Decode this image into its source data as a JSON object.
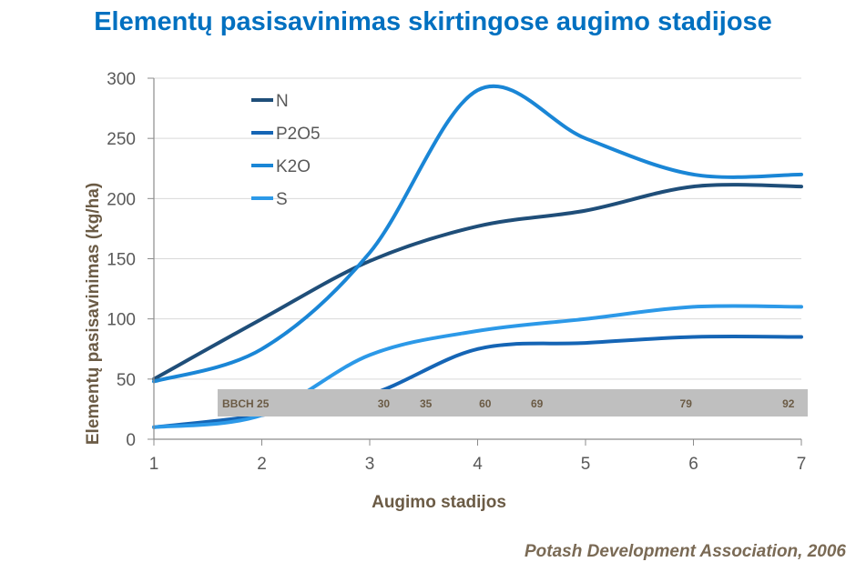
{
  "title": "Elementų pasisavinimas skirtingose augimo stadijose",
  "source": "Potash Development Association,  2006",
  "chart_data": {
    "type": "line",
    "title": "Elementų pasisavinimas skirtingose augimo stadijose",
    "xlabel": "Augimo stadijos",
    "ylabel": "Elementų pasisavinimas (kg/ha)",
    "x": [
      1,
      2,
      3,
      4,
      5,
      6,
      7
    ],
    "xlim": [
      1,
      7
    ],
    "ylim": [
      0,
      300
    ],
    "yticks": [
      0,
      50,
      100,
      150,
      200,
      250,
      300
    ],
    "grid": "horizontal",
    "legend_position": "top-left",
    "series": [
      {
        "name": "N",
        "color": "#1f4e79",
        "values": [
          50,
          100,
          148,
          177,
          190,
          210,
          210
        ]
      },
      {
        "name": "P2O5",
        "color": "#1565b5",
        "values": [
          10,
          20,
          37,
          75,
          80,
          85,
          85
        ]
      },
      {
        "name": "K2O",
        "color": "#1a86d6",
        "values": [
          48,
          75,
          155,
          290,
          250,
          220,
          220
        ]
      },
      {
        "name": "S",
        "color": "#2c99e8",
        "values": [
          10,
          20,
          70,
          90,
          100,
          110,
          110
        ]
      }
    ],
    "bbch_band": {
      "color": "#bfbfbf",
      "labels": [
        {
          "text": "BBCH 25",
          "x": 1.85
        },
        {
          "text": "30",
          "x": 3.13
        },
        {
          "text": "35",
          "x": 3.52
        },
        {
          "text": "60",
          "x": 4.07
        },
        {
          "text": "69",
          "x": 4.55
        },
        {
          "text": "79",
          "x": 5.93
        },
        {
          "text": "92",
          "x": 6.88
        }
      ]
    }
  }
}
